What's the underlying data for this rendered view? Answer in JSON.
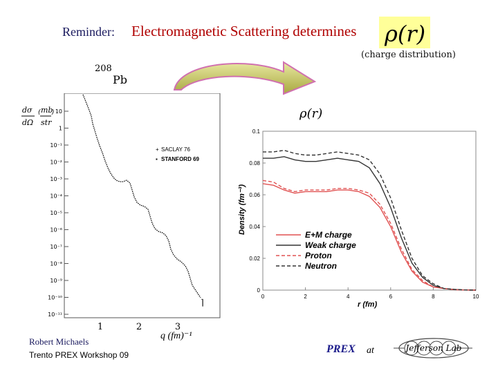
{
  "title": {
    "lead": "Reminder:",
    "main": "Electromagnetic Scattering  determines",
    "symbol": "ρ(r)",
    "subtitle": "(charge distribution)"
  },
  "nucleus": {
    "mass_number": "208",
    "element": "Pb"
  },
  "left_plot": {
    "y_label_num": "dσ",
    "y_label_den": "dΩ",
    "y_unit_num": "mb",
    "y_unit_den": "str",
    "y_ticks": [
      "10",
      "1",
      "10⁻¹",
      "10⁻²",
      "10⁻³",
      "10⁻⁴",
      "10⁻⁵",
      "10⁻⁶",
      "10⁻⁷",
      "10⁻⁸",
      "10⁻⁹",
      "10⁻¹⁰",
      "10⁻¹¹"
    ],
    "x_ticks": [
      "1",
      "2",
      "3"
    ],
    "x_label": "q  (fm)⁻¹",
    "legend": [
      "SACLAY 76",
      "STANFORD 69"
    ]
  },
  "chart_data": {
    "type": "line",
    "title": "ρ(r)",
    "xlabel": "r (fm)",
    "ylabel": "Density (fm⁻³)",
    "xlim": [
      0,
      10
    ],
    "ylim": [
      0,
      0.1
    ],
    "x_ticks": [
      "0",
      "2",
      "4",
      "6",
      "8",
      "10"
    ],
    "y_ticks": [
      "0",
      "0.02",
      "0.04",
      "0.06",
      "0.08",
      "0.1"
    ],
    "legend_position": "bottom-left",
    "series": [
      {
        "name": "E+M charge",
        "color": "#e05050",
        "dash": "solid",
        "x": [
          0,
          0.5,
          1.0,
          1.5,
          2.0,
          2.5,
          3.0,
          3.5,
          4.0,
          4.5,
          5.0,
          5.5,
          6.0,
          6.5,
          7.0,
          7.5,
          8.0,
          8.5,
          9.0,
          9.5,
          10
        ],
        "y": [
          0.067,
          0.066,
          0.063,
          0.061,
          0.062,
          0.062,
          0.062,
          0.063,
          0.063,
          0.062,
          0.059,
          0.052,
          0.04,
          0.024,
          0.012,
          0.005,
          0.002,
          0.001,
          0.0003,
          0.0001,
          0.0
        ]
      },
      {
        "name": "Weak charge",
        "color": "#333333",
        "dash": "solid",
        "x": [
          0,
          0.5,
          1.0,
          1.5,
          2.0,
          2.5,
          3.0,
          3.5,
          4.0,
          4.5,
          5.0,
          5.5,
          6.0,
          6.5,
          7.0,
          7.5,
          8.0,
          8.5,
          9.0,
          9.5,
          10
        ],
        "y": [
          0.083,
          0.083,
          0.084,
          0.082,
          0.081,
          0.081,
          0.082,
          0.083,
          0.082,
          0.081,
          0.077,
          0.067,
          0.052,
          0.033,
          0.017,
          0.008,
          0.003,
          0.001,
          0.0004,
          0.0001,
          0.0
        ]
      },
      {
        "name": "Proton",
        "color": "#e05050",
        "dash": "dashed",
        "x": [
          0,
          0.5,
          1.0,
          1.5,
          2.0,
          2.5,
          3.0,
          3.5,
          4.0,
          4.5,
          5.0,
          5.5,
          6.0,
          6.5,
          7.0,
          7.5,
          8.0,
          8.5,
          9.0,
          9.5,
          10
        ],
        "y": [
          0.069,
          0.068,
          0.064,
          0.062,
          0.063,
          0.063,
          0.063,
          0.064,
          0.064,
          0.063,
          0.061,
          0.054,
          0.042,
          0.026,
          0.013,
          0.006,
          0.002,
          0.001,
          0.0003,
          0.0001,
          0.0
        ]
      },
      {
        "name": "Neutron",
        "color": "#333333",
        "dash": "dashed",
        "x": [
          0,
          0.5,
          1.0,
          1.5,
          2.0,
          2.5,
          3.0,
          3.5,
          4.0,
          4.5,
          5.0,
          5.5,
          6.0,
          6.5,
          7.0,
          7.5,
          8.0,
          8.5,
          9.0,
          9.5,
          10
        ],
        "y": [
          0.087,
          0.087,
          0.088,
          0.086,
          0.085,
          0.085,
          0.086,
          0.087,
          0.086,
          0.085,
          0.082,
          0.073,
          0.058,
          0.038,
          0.02,
          0.009,
          0.004,
          0.001,
          0.0005,
          0.0001,
          0.0
        ]
      }
    ]
  },
  "footer": {
    "author": "Robert  Michaels",
    "event": "Trento  PREX   Workshop   09",
    "experiment": "PREX",
    "at": "at",
    "logo_text": "Jefferson Lab"
  },
  "colors": {
    "title_red": "#b00000",
    "rho_highlight": "#ffff99",
    "arrow_fill": "#c8c860"
  }
}
